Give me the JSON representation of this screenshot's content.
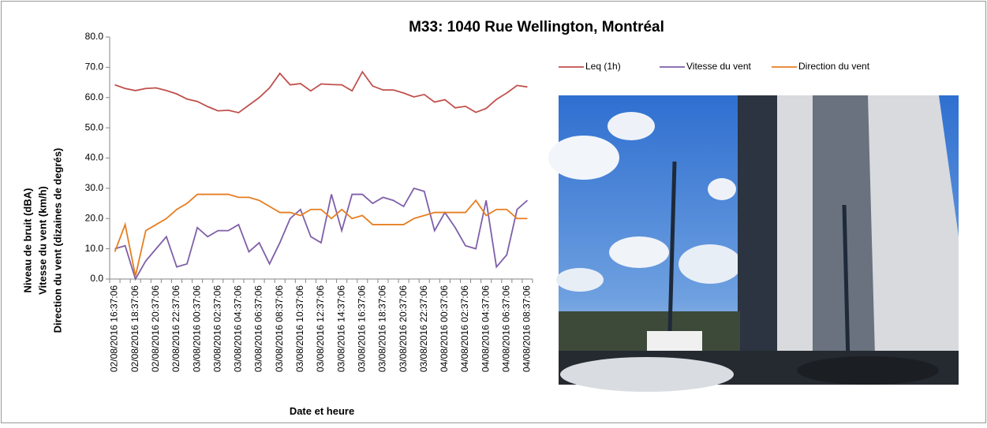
{
  "chart_data": {
    "type": "line",
    "title": "M33: 1040 Rue Wellington, Montréal",
    "xlabel": "Date et heure",
    "ylabel": [
      "Niveau de bruit (dBA)",
      "Vitesse du vent (km/h)",
      "Direction du vent (dizaines de degrés)"
    ],
    "categories": [
      "02/08/2016 16:37:06",
      null,
      "02/08/2016 18:37:06",
      null,
      "02/08/2016 20:37:06",
      null,
      "02/08/2016 22:37:06",
      null,
      "03/08/2016 00:37:06",
      null,
      "03/08/2016 02:37:06",
      null,
      "03/08/2016 04:37:06",
      null,
      "03/08/2016 06:37:06",
      null,
      "03/08/2016 08:37:06",
      null,
      "03/08/2016 10:37:06",
      null,
      "03/08/2016 12:37:06",
      null,
      "03/08/2016 14:37:06",
      null,
      "03/08/2016 16:37:06",
      null,
      "03/08/2016 18:37:06",
      null,
      "03/08/2016 20:37:06",
      null,
      "03/08/2016 22:37:06",
      null,
      "04/08/2016 00:37:06",
      null,
      "04/08/2016 02:37:06",
      null,
      "04/08/2016 04:37:06",
      null,
      "04/08/2016 06:37:06",
      null,
      "04/08/2016 08:37:06"
    ],
    "series": [
      {
        "name": "Leq (1h)",
        "color": "#c0504d",
        "values": [
          64.2,
          63,
          62.3,
          63,
          63.2,
          62.3,
          61.2,
          59.5,
          58.7,
          57,
          55.6,
          55.8,
          55,
          57.5,
          60,
          63.2,
          68,
          64.2,
          64.6,
          62.2,
          64.5,
          64.3,
          64.2,
          62.2,
          68.5,
          63.8,
          62.5,
          62.5,
          61.5,
          60.2,
          61,
          58.5,
          59.3,
          56.6,
          57.1,
          55.1,
          56.4,
          59.4,
          61.5,
          64,
          63.5
        ]
      },
      {
        "name": "Vitesse du vent",
        "color": "#7f5fa8",
        "values": [
          10,
          11,
          0,
          6,
          10,
          14,
          4,
          5,
          17,
          14,
          16,
          16,
          18,
          9,
          12,
          5,
          12,
          20,
          23,
          14,
          12,
          28,
          16,
          28,
          28,
          25,
          27,
          26,
          24,
          30,
          29,
          16,
          22,
          17,
          11,
          10,
          26,
          4,
          8,
          23,
          26
        ]
      },
      {
        "name": "Direction du vent",
        "color": "#e67e22",
        "values": [
          9,
          18,
          1,
          16,
          18,
          20,
          23,
          25,
          28,
          28,
          28,
          28,
          27,
          27,
          26,
          24,
          22,
          22,
          21,
          23,
          23,
          20,
          23,
          20,
          21,
          18,
          18,
          18,
          18,
          20,
          21,
          22,
          22,
          22,
          22,
          26,
          21,
          23,
          23,
          20,
          20
        ]
      }
    ],
    "ylim": [
      0,
      80
    ],
    "yticks": [
      {
        "value": 0,
        "label": "0.0"
      },
      {
        "value": 10,
        "label": "10.0"
      },
      {
        "value": 20,
        "label": "20.0"
      },
      {
        "value": 30,
        "label": "30.0"
      },
      {
        "value": 40,
        "label": "40.0"
      },
      {
        "value": 50,
        "label": "50.0"
      },
      {
        "value": 60,
        "label": "60.0"
      },
      {
        "value": 70,
        "label": "70.0"
      },
      {
        "value": 80,
        "label": "80.0"
      }
    ],
    "grid": false,
    "legend": "top-right"
  }
}
